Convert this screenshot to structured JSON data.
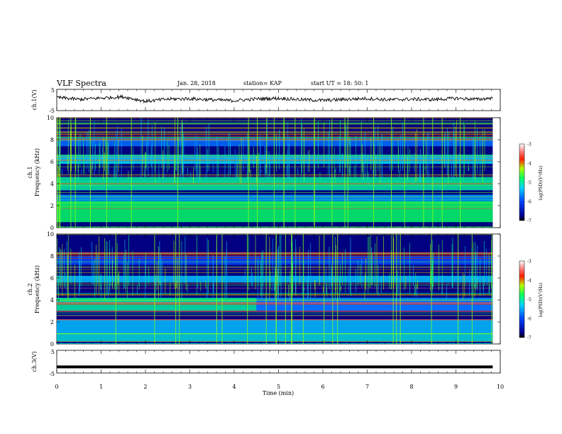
{
  "header": {
    "title": "VLF Spectra",
    "date": "Jan. 28, 2018",
    "station_label": "station= KAP",
    "start_label": "start  UT =   18: 50: 1"
  },
  "chart_data": [
    {
      "type": "line",
      "panel": "ch1-waveform",
      "ylabel": "ch.1(V)",
      "yticks": [
        "5",
        "-5"
      ],
      "ylim": [
        -5,
        5
      ],
      "xlim": [
        0,
        10
      ],
      "x": [
        0,
        0.5,
        1,
        1.5,
        2,
        2.5,
        3,
        3.5,
        4,
        4.5,
        5,
        5.5,
        6,
        6.5,
        7,
        7.5,
        8,
        8.5,
        9,
        9.5,
        9.83
      ],
      "values": [
        1.2,
        0.3,
        0.9,
        1.5,
        -0.6,
        0.4,
        0.6,
        0.1,
        -0.3,
        0.5,
        0.8,
        0.2,
        -0.2,
        0.3,
        0.7,
        0.1,
        0.4,
        0.2,
        0.8,
        0.3,
        1.0
      ]
    },
    {
      "type": "heatmap",
      "panel": "ch1-spectrogram",
      "ylabel": "ch.1",
      "ylabel2": "Frequency (kHz)",
      "ylim": [
        0,
        10
      ],
      "yticks": [
        "0",
        "2",
        "4",
        "6",
        "8",
        "10"
      ],
      "xlim": [
        0,
        10
      ],
      "data_end_min": 9.83,
      "event_change_min": 4.5,
      "colorbar": {
        "label": "log(PSD)(V²/Hz)",
        "range": [
          -7,
          -3
        ],
        "ticks": [
          "-3",
          "-4",
          "-5",
          "-6",
          "-7"
        ]
      }
    },
    {
      "type": "heatmap",
      "panel": "ch2-spectrogram",
      "ylabel": "ch.2",
      "ylabel2": "Frequency (kHz)",
      "ylim": [
        0,
        10
      ],
      "yticks": [
        "0",
        "2",
        "4",
        "6",
        "8",
        "10"
      ],
      "xlim": [
        0,
        10
      ],
      "data_end_min": 9.83,
      "event_change_min": 4.5,
      "colorbar": {
        "label": "log(PSD)(V²/Hz)",
        "range": [
          -7,
          -3
        ],
        "ticks": [
          "-3",
          "-4",
          "-5",
          "-6",
          "-7"
        ]
      }
    },
    {
      "type": "line",
      "panel": "ch3-waveform",
      "ylabel": "ch.3(V)",
      "yticks": [
        "5",
        "-5"
      ],
      "ylim": [
        -5,
        5
      ],
      "xlim": [
        0,
        10
      ],
      "x": [
        0,
        9.83
      ],
      "values": [
        -2.3,
        -2.3
      ]
    }
  ],
  "xaxis": {
    "label": "Time  (min)",
    "ticks": [
      "0",
      "1",
      "2",
      "3",
      "4",
      "5",
      "6",
      "7",
      "8",
      "9",
      "10"
    ]
  },
  "colors": {
    "background": "#000080",
    "trace": "#000000"
  }
}
